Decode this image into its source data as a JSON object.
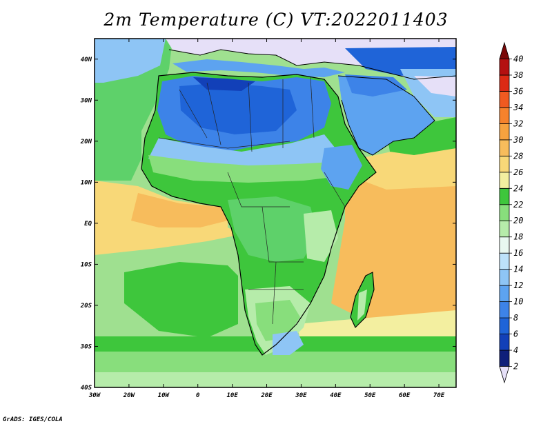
{
  "title": "2m Temperature (C) VT:2022011403",
  "credit": "GrADS: IGES/COLA",
  "map": {
    "projection": "latlon",
    "lon_range": [
      -30,
      75
    ],
    "lat_range": [
      -40,
      45
    ],
    "lon_ticks": [
      {
        "value": -30,
        "label": "30W"
      },
      {
        "value": -20,
        "label": "20W"
      },
      {
        "value": -10,
        "label": "10W"
      },
      {
        "value": 0,
        "label": "0"
      },
      {
        "value": 10,
        "label": "10E"
      },
      {
        "value": 20,
        "label": "20E"
      },
      {
        "value": 30,
        "label": "30E"
      },
      {
        "value": 40,
        "label": "40E"
      },
      {
        "value": 50,
        "label": "50E"
      },
      {
        "value": 60,
        "label": "60E"
      },
      {
        "value": 70,
        "label": "70E"
      }
    ],
    "lat_ticks": [
      {
        "value": 40,
        "label": "40N"
      },
      {
        "value": 30,
        "label": "30N"
      },
      {
        "value": 20,
        "label": "20N"
      },
      {
        "value": 10,
        "label": "10N"
      },
      {
        "value": 0,
        "label": "EQ"
      },
      {
        "value": -10,
        "label": "10S"
      },
      {
        "value": -20,
        "label": "20S"
      },
      {
        "value": -30,
        "label": "30S"
      },
      {
        "value": -40,
        "label": "40S"
      }
    ]
  },
  "colorbar": {
    "levels": [
      "2",
      "4",
      "6",
      "8",
      "10",
      "12",
      "14",
      "16",
      "18",
      "20",
      "22",
      "24",
      "26",
      "28",
      "30",
      "32",
      "34",
      "36",
      "38",
      "40"
    ],
    "colors": [
      "#e6e0f8",
      "#0f1f7a",
      "#1240b8",
      "#1f64d8",
      "#3d83e8",
      "#5da3f0",
      "#8ec5f5",
      "#bde2fa",
      "#e8f8f0",
      "#b6ecaa",
      "#88de7c",
      "#3ec63c",
      "#f3efa0",
      "#f8d878",
      "#f7bc5c",
      "#f7a23f",
      "#f6822c",
      "#f05a20",
      "#dc2a14",
      "#b41010",
      "#7a0808"
    ]
  },
  "regions": {
    "ocean_atlantic_tropical": {
      "color": "#f8d878"
    },
    "ocean_south_band": {
      "color": "#5fd05a"
    },
    "land_sahara": {
      "color": "#3d83e8"
    },
    "land_central_africa": {
      "color": "#3ec63c"
    },
    "ocean_indian": {
      "color": "#f7bc5c"
    },
    "land_europe": {
      "color": "#e6e0f8"
    },
    "land_arabia": {
      "color": "#5da3f0"
    }
  }
}
